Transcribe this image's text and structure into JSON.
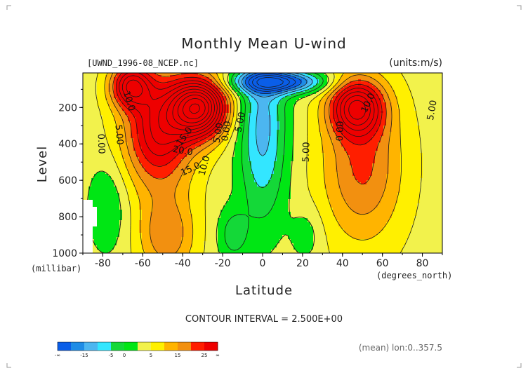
{
  "chart_data": {
    "type": "heatmap",
    "title": "Monthly Mean U-wind",
    "source_label": "[UWND_1996-08_NCEP.nc]",
    "units_label": "(units:m/s)",
    "xlabel": "Latitude",
    "x_unit_label": "(degrees_north)",
    "ylabel": "Level",
    "y_unit_label": "(millibar)",
    "xlim": [
      -90,
      90
    ],
    "ylim": [
      1000,
      10
    ],
    "x_ticks": [
      -80,
      -60,
      -40,
      -20,
      0,
      20,
      40,
      60,
      80
    ],
    "x_tick_labels": [
      "-80",
      "-60",
      "-40",
      "-20",
      "0",
      "20",
      "40",
      "60",
      "80"
    ],
    "y_ticks": [
      200,
      400,
      600,
      800,
      1000
    ],
    "y_tick_labels": [
      "200",
      "400",
      "600",
      "800",
      "1000"
    ],
    "contour_interval_label": "CONTOUR INTERVAL = 2.500E+00",
    "footer_label": "(mean) lon:0..357.5",
    "colorbar": {
      "colors": [
        "#0a5ee8",
        "#1e8ce6",
        "#4cb6f0",
        "#33e6ff",
        "#14d838",
        "#00e614",
        "#f2f24c",
        "#fff000",
        "#ffb400",
        "#f29010",
        "#ff1e00",
        "#ee0000"
      ],
      "tick_labels": [
        "-∞",
        "-15",
        "-5",
        "0",
        "5",
        "15",
        "25",
        "∞"
      ],
      "tick_boundaries": [
        0,
        2,
        4,
        5,
        7,
        9,
        11,
        12
      ]
    },
    "contour_labels": [
      {
        "text": "10.0",
        "lat": -67,
        "p": 165,
        "angle": 72
      },
      {
        "text": "5.00",
        "lat": -72,
        "p": 350,
        "angle": 85
      },
      {
        "text": "0.00",
        "lat": -81,
        "p": 400,
        "angle": 88
      },
      {
        "text": "20.0",
        "lat": -40,
        "p": 440,
        "angle": 10
      },
      {
        "text": "15.0",
        "lat": -36,
        "p": 540,
        "angle": -25
      },
      {
        "text": "10.0",
        "lat": -29,
        "p": 520,
        "angle": -75
      },
      {
        "text": "15.0",
        "lat": -39,
        "p": 360,
        "angle": -55
      },
      {
        "text": "5.00",
        "lat": -22,
        "p": 340,
        "angle": -80
      },
      {
        "text": "0.00",
        "lat": -18,
        "p": 330,
        "angle": -82
      },
      {
        "text": "5.00",
        "lat": -11,
        "p": 280,
        "angle": -78
      },
      {
        "text": "5.00",
        "lat": 22,
        "p": 445,
        "angle": -88
      },
      {
        "text": "0.00",
        "lat": 39,
        "p": 330,
        "angle": -88
      },
      {
        "text": "10.0",
        "lat": 53,
        "p": 175,
        "angle": -65
      },
      {
        "text": "5.00",
        "lat": 85,
        "p": 215,
        "angle": -80
      }
    ],
    "grid": false
  }
}
